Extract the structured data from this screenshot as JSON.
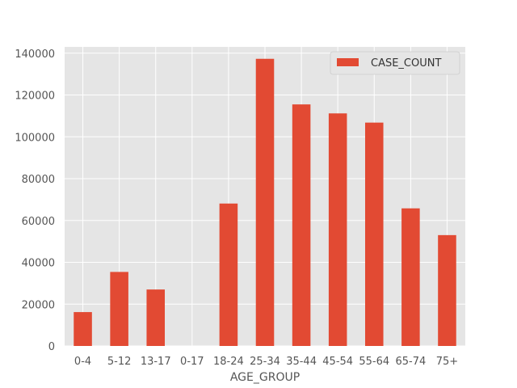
{
  "chart_data": {
    "type": "bar",
    "title": "",
    "xlabel": "AGE_GROUP",
    "ylabel": "",
    "categories": [
      "0-4",
      "5-12",
      "13-17",
      "0-17",
      "18-24",
      "25-34",
      "35-44",
      "45-54",
      "55-64",
      "65-74",
      "75+"
    ],
    "series": [
      {
        "name": "CASE_COUNT",
        "values": [
          16200,
          35400,
          27000,
          0,
          68100,
          137300,
          115500,
          111200,
          106800,
          65800,
          53000
        ]
      }
    ],
    "ylim": [
      0,
      143000
    ],
    "yticks": [
      0,
      20000,
      40000,
      60000,
      80000,
      100000,
      120000,
      140000
    ],
    "ytick_labels": [
      "0",
      "20000",
      "40000",
      "60000",
      "80000",
      "100000",
      "120000",
      "140000"
    ],
    "grid": true,
    "legend_position": "top-right",
    "colors": {
      "bar": "#E24A33",
      "plot_background": "#E5E5E5",
      "grid": "#FFFFFF",
      "text": "#555555"
    }
  }
}
